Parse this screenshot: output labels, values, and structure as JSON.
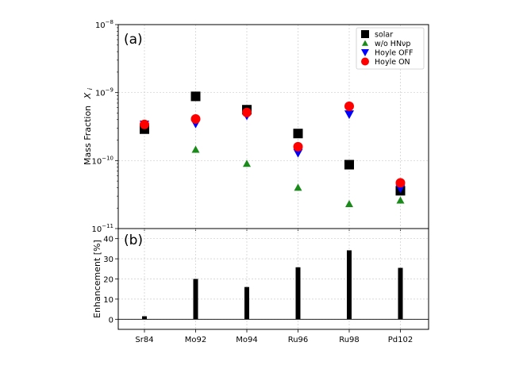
{
  "chart_data": [
    {
      "type": "scatter",
      "panel_label": "(a)",
      "ylabel_main": "Mass Fraction",
      "ylabel_sym": "X",
      "ylabel_sub": "i",
      "yscale": "log",
      "ylim": [
        1e-11,
        1e-08
      ],
      "ytick_labels": [
        {
          "base": "10",
          "exp": "−8"
        },
        {
          "base": "10",
          "exp": "−9"
        },
        {
          "base": "10",
          "exp": "−10"
        },
        {
          "base": "10",
          "exp": "−11"
        }
      ],
      "ytick_values": [
        1e-08,
        1e-09,
        1e-10,
        1e-11
      ],
      "categories": [
        "Sr84",
        "Mo92",
        "Mo94",
        "Ru96",
        "Ru98",
        "Pd102"
      ],
      "grid": true,
      "legend_position": "top-right",
      "series": [
        {
          "name": "solar",
          "marker": "square",
          "color": "#000000",
          "values": [
            2.9e-10,
            8.8e-10,
            5.6e-10,
            2.5e-10,
            8.7e-11,
            3.6e-11
          ]
        },
        {
          "name": "w/o HNνp",
          "marker": "triangle-up",
          "color": "#1a8a1a",
          "values": [
            null,
            1.45e-10,
            9e-11,
            4e-11,
            2.3e-11,
            2.6e-11
          ]
        },
        {
          "name": "Hoyle OFF",
          "marker": "triangle-down",
          "color": "#0000ff",
          "values": [
            3.4e-10,
            3.5e-10,
            4.6e-10,
            1.3e-10,
            4.8e-10,
            3.9e-11
          ]
        },
        {
          "name": "Hoyle ON",
          "marker": "circle",
          "color": "#ff0000",
          "values": [
            3.4e-10,
            4.1e-10,
            5.1e-10,
            1.6e-10,
            6.3e-10,
            4.7e-11
          ]
        }
      ]
    },
    {
      "type": "bar",
      "panel_label": "(b)",
      "ylabel": "Enhancement [%]",
      "ylim": [
        -5,
        45
      ],
      "yticks": [
        0,
        10,
        20,
        30,
        40
      ],
      "categories": [
        "Sr84",
        "Mo92",
        "Mo94",
        "Ru96",
        "Ru98",
        "Pd102"
      ],
      "values": [
        1.5,
        20,
        16,
        25.8,
        34.2,
        25.5
      ],
      "bar_color": "#000000",
      "grid": true
    }
  ]
}
